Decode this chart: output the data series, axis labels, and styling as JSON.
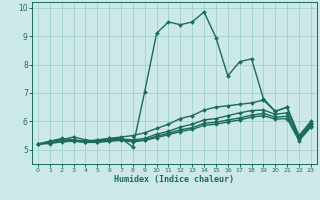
{
  "xlabel": "Humidex (Indice chaleur)",
  "xlim": [
    -0.5,
    23.5
  ],
  "ylim": [
    4.5,
    10.2
  ],
  "yticks": [
    5,
    6,
    7,
    8,
    9,
    10
  ],
  "xticks": [
    0,
    1,
    2,
    3,
    4,
    5,
    6,
    7,
    8,
    9,
    10,
    11,
    12,
    13,
    14,
    15,
    16,
    17,
    18,
    19,
    20,
    21,
    22,
    23
  ],
  "bg_color": "#cce8e8",
  "grid_color": "#99cccc",
  "line_color": "#1a6b5a",
  "lines": [
    [
      5.2,
      5.3,
      5.35,
      5.45,
      5.35,
      5.3,
      5.4,
      5.4,
      5.1,
      7.05,
      9.1,
      9.5,
      9.4,
      9.5,
      9.85,
      8.95,
      7.6,
      8.1,
      8.2,
      6.8,
      6.35,
      6.5,
      5.4,
      5.95
    ],
    [
      5.2,
      5.3,
      5.4,
      5.35,
      5.3,
      5.35,
      5.4,
      5.45,
      5.5,
      5.6,
      5.75,
      5.9,
      6.1,
      6.2,
      6.4,
      6.5,
      6.55,
      6.6,
      6.65,
      6.75,
      6.35,
      6.5,
      5.5,
      6.0
    ],
    [
      5.2,
      5.25,
      5.3,
      5.35,
      5.28,
      5.28,
      5.35,
      5.38,
      5.35,
      5.4,
      5.55,
      5.65,
      5.8,
      5.9,
      6.05,
      6.1,
      6.2,
      6.3,
      6.38,
      6.4,
      6.25,
      6.3,
      5.45,
      5.9
    ],
    [
      5.2,
      5.25,
      5.3,
      5.32,
      5.28,
      5.28,
      5.32,
      5.35,
      5.3,
      5.35,
      5.48,
      5.58,
      5.7,
      5.78,
      5.93,
      5.97,
      6.05,
      6.12,
      6.22,
      6.28,
      6.15,
      6.18,
      5.38,
      5.85
    ],
    [
      5.2,
      5.22,
      5.28,
      5.3,
      5.26,
      5.26,
      5.3,
      5.33,
      5.28,
      5.33,
      5.43,
      5.53,
      5.64,
      5.72,
      5.86,
      5.9,
      5.98,
      6.05,
      6.15,
      6.2,
      6.08,
      6.1,
      5.32,
      5.8
    ]
  ]
}
